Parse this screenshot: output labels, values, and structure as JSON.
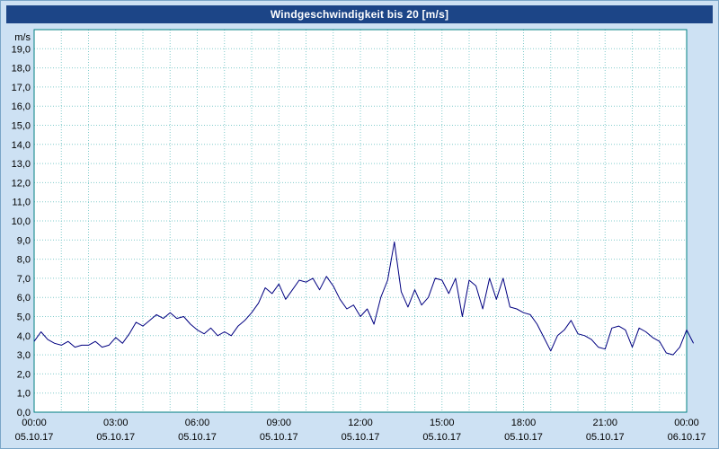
{
  "title": "Windgeschwindigkeit bis 20 [m/s]",
  "colors": {
    "titlebar": "#1c4587",
    "background": "#cde1f3",
    "plot_background": "#ffffff",
    "plot_border": "#008080",
    "grid": "#82cccc",
    "line": "#000080",
    "text": "#000000"
  },
  "chart_data": {
    "type": "line",
    "title": "Windgeschwindigkeit bis 20 [m/s]",
    "ylabel": "m/s",
    "xlabel": "",
    "ylim": [
      0,
      20
    ],
    "xlim": [
      0,
      24
    ],
    "grid": "dotted",
    "legend": "none",
    "yticks": [
      "0,0",
      "1,0",
      "2,0",
      "3,0",
      "4,0",
      "5,0",
      "6,0",
      "7,0",
      "8,0",
      "9,0",
      "10,0",
      "11,0",
      "12,0",
      "13,0",
      "14,0",
      "15,0",
      "16,0",
      "17,0",
      "18,0",
      "19,0"
    ],
    "xticks": [
      {
        "hour": 0,
        "time": "00:00",
        "date": "05.10.17"
      },
      {
        "hour": 3,
        "time": "03:00",
        "date": "05.10.17"
      },
      {
        "hour": 6,
        "time": "06:00",
        "date": "05.10.17"
      },
      {
        "hour": 9,
        "time": "09:00",
        "date": "05.10.17"
      },
      {
        "hour": 12,
        "time": "12:00",
        "date": "05.10.17"
      },
      {
        "hour": 15,
        "time": "15:00",
        "date": "05.10.17"
      },
      {
        "hour": 18,
        "time": "18:00",
        "date": "05.10.17"
      },
      {
        "hour": 21,
        "time": "21:00",
        "date": "05.10.17"
      },
      {
        "hour": 24,
        "time": "00:00",
        "date": "06.10.17"
      }
    ],
    "x_step_hours": 0.25,
    "values": [
      3.7,
      4.2,
      3.8,
      3.6,
      3.5,
      3.7,
      3.4,
      3.5,
      3.5,
      3.7,
      3.4,
      3.5,
      3.9,
      3.6,
      4.1,
      4.7,
      4.5,
      4.8,
      5.1,
      4.9,
      5.2,
      4.9,
      5.0,
      4.6,
      4.3,
      4.1,
      4.4,
      4.0,
      4.2,
      4.0,
      4.5,
      4.8,
      5.2,
      5.7,
      6.5,
      6.2,
      6.7,
      5.9,
      6.4,
      6.9,
      6.8,
      7.0,
      6.4,
      7.1,
      6.6,
      5.9,
      5.4,
      5.6,
      5.0,
      5.4,
      4.6,
      6.0,
      6.9,
      8.9,
      6.3,
      5.5,
      6.4,
      5.6,
      6.0,
      7.0,
      6.9,
      6.2,
      7.0,
      5.0,
      6.9,
      6.6,
      5.4,
      7.0,
      5.9,
      7.0,
      5.5,
      5.4,
      5.2,
      5.1,
      4.6,
      3.9,
      3.2,
      4.0,
      4.3,
      4.8,
      4.1,
      4.0,
      3.8,
      3.4,
      3.3,
      4.4,
      4.5,
      4.3,
      3.4,
      4.4,
      4.2,
      3.9,
      3.7,
      3.1,
      3.0,
      3.4,
      4.3,
      3.6
    ]
  }
}
